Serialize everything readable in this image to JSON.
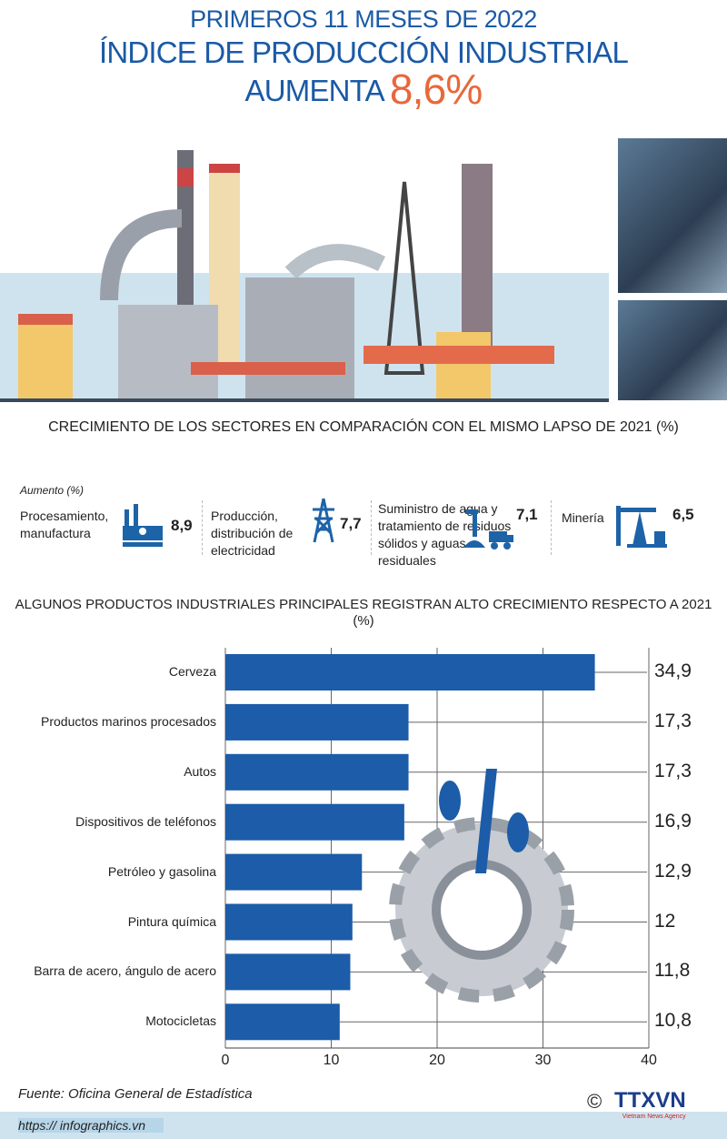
{
  "header": {
    "line1": "PRIMEROS 11 MESES DE 2022",
    "line2": "ÍNDICE DE PRODUCCIÓN INDUSTRIAL AUMENTA",
    "highlight": "8,6%"
  },
  "sectors_section": {
    "title": "CRECIMIENTO DE LOS SECTORES EN COMPARACIÓN CON EL MISMO LAPSO DE 2021 (%)",
    "legend": "Aumento (%)",
    "items": [
      {
        "label": "Procesamiento, manufactura",
        "value": "8,9",
        "icon": "factory-icon"
      },
      {
        "label": "Producción, distribución de electricidad",
        "value": "7,7",
        "icon": "power-tower-icon"
      },
      {
        "label": "Suministro de agua y tratamiento de residuos sólidos y aguas residuales",
        "value": "7,1",
        "icon": "water-tap-truck-icon"
      },
      {
        "label": "Minería",
        "value": "6,5",
        "icon": "oil-pump-icon"
      }
    ]
  },
  "colors": {
    "accent": "#1a5aa6",
    "highlight": "#e8683a",
    "bar": "#1c5ca8"
  },
  "chart_data": {
    "type": "bar",
    "orientation": "horizontal",
    "title": "ALGUNOS PRODUCTOS INDUSTRIALES PRINCIPALES REGISTRAN ALTO CRECIMIENTO RESPECTO A 2021 (%)",
    "categories": [
      "Cerveza",
      "Productos marinos  procesados",
      "Autos",
      "Dispositivos de teléfonos",
      "Petróleo y gasolina",
      "Pintura química",
      "Barra de acero, ángulo de acero",
      "Motocicletas"
    ],
    "values": [
      34.9,
      17.3,
      17.3,
      16.9,
      12.9,
      12,
      11.8,
      10.8
    ],
    "value_labels": [
      "34,9",
      "17,3",
      "17,3",
      "16,9",
      "12,9",
      "12",
      "11,8",
      "10,8"
    ],
    "xlim": [
      0,
      40
    ],
    "xticks": [
      "0",
      "10",
      "20",
      "30",
      "40"
    ],
    "grid": true
  },
  "footer": {
    "source": "Fuente: Oficina General de Estadística",
    "url": "https:// infographics.vn",
    "copyright": "©",
    "logo": "TTXVN",
    "logo_sub": "Vietnam News Agency"
  }
}
